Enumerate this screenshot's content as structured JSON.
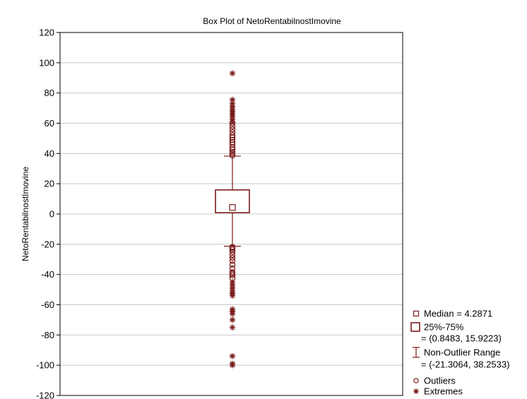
{
  "chart_data": {
    "type": "boxplot",
    "title": "Box Plot of NetoRentabilnostImovine",
    "ylabel": "NetoRentabilnostImovine",
    "xlabel": "",
    "ylim": [
      -120,
      120
    ],
    "yticks": [
      -120,
      -100,
      -80,
      -60,
      -40,
      -20,
      0,
      20,
      40,
      60,
      80,
      100,
      120
    ],
    "grid": "horizontal",
    "legend_position": "bottom-right",
    "color": "#7a1c1c",
    "stats": {
      "median": 4.2871,
      "q1": 0.8483,
      "q3": 15.9223,
      "whisker_low": -21.3064,
      "whisker_high": 38.2533
    },
    "outliers": [
      38.7,
      40,
      41,
      42.5,
      44,
      46,
      47.5,
      49,
      50.5,
      52,
      54,
      56,
      58,
      60,
      -21.8,
      -22.5,
      -23.5,
      -25,
      -27,
      -29,
      -31,
      -33.5,
      -36,
      -38.5,
      -39.5,
      -40.5,
      -42.5
    ],
    "extremes": [
      93,
      75.5,
      73,
      71,
      69,
      67.5,
      66,
      64.5,
      62.5,
      61,
      -45,
      -47,
      -49,
      -51,
      -52.5,
      -54,
      -63,
      -64.5,
      -66,
      -70,
      -75,
      -94,
      -99,
      -100
    ],
    "legend": [
      {
        "symbol": "median",
        "text": "Median = 4.2871"
      },
      {
        "symbol": "box",
        "text": "25%-75%"
      },
      {
        "symbol": "none",
        "text": "= (0.8483, 15.9223)"
      },
      {
        "symbol": "whisker",
        "text": "Non-Outlier Range"
      },
      {
        "symbol": "none",
        "text": "= (-21.3064, 38.2533)"
      },
      {
        "symbol": "outlier",
        "text": "Outliers"
      },
      {
        "symbol": "extreme",
        "text": "Extremes"
      }
    ]
  }
}
